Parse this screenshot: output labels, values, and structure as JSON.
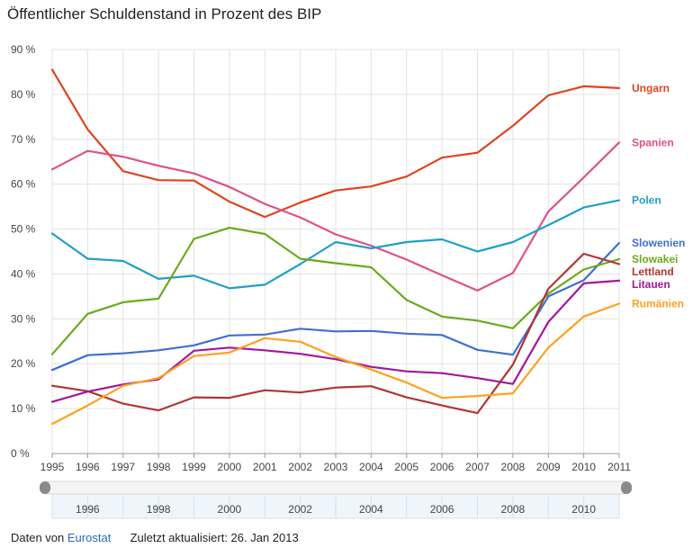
{
  "chart_data": {
    "type": "line",
    "title": "Öffentlicher Schuldenstand in Prozent des BIP",
    "ylim": [
      0,
      90
    ],
    "yticks": [
      0,
      10,
      20,
      30,
      40,
      50,
      60,
      70,
      80,
      90
    ],
    "ytick_labels": [
      "0 %",
      "10 %",
      "20 %",
      "30 %",
      "40 %",
      "50 %",
      "60 %",
      "70 %",
      "80 %",
      "90 %"
    ],
    "x": [
      "1995",
      "1996",
      "1997",
      "1998",
      "1999",
      "2000",
      "2001",
      "2002",
      "2003",
      "2004",
      "2005",
      "2006",
      "2007",
      "2008",
      "2009",
      "2010",
      "2011"
    ],
    "grid": true,
    "legend": "right",
    "series": [
      {
        "name": "Ungarn",
        "color": "#e0431f",
        "values": [
          85.5,
          72.2,
          62.9,
          60.9,
          60.8,
          56.1,
          52.7,
          55.9,
          58.6,
          59.5,
          61.7,
          65.9,
          67.0,
          73.0,
          79.8,
          81.8,
          81.4
        ]
      },
      {
        "name": "Spanien",
        "color": "#e0508a",
        "values": [
          63.3,
          67.4,
          66.1,
          64.1,
          62.4,
          59.4,
          55.6,
          52.6,
          48.8,
          46.3,
          43.2,
          39.7,
          36.3,
          40.2,
          53.9,
          61.5,
          69.3
        ]
      },
      {
        "name": "Polen",
        "color": "#1ea0c8",
        "values": [
          49.0,
          43.4,
          42.9,
          38.9,
          39.6,
          36.8,
          37.6,
          42.2,
          47.1,
          45.7,
          47.1,
          47.7,
          45.0,
          47.1,
          50.9,
          54.8,
          56.4
        ]
      },
      {
        "name": "Slowenien",
        "color": "#3f6fd0",
        "values": [
          18.6,
          21.9,
          22.3,
          23.0,
          24.1,
          26.3,
          26.5,
          27.8,
          27.2,
          27.3,
          26.7,
          26.4,
          23.1,
          22.0,
          35.0,
          38.6,
          46.9
        ]
      },
      {
        "name": "Slowakei",
        "color": "#6aaa1c",
        "values": [
          22.1,
          31.1,
          33.7,
          34.5,
          47.8,
          50.3,
          48.9,
          43.4,
          42.4,
          41.5,
          34.2,
          30.5,
          29.6,
          27.9,
          35.6,
          41.0,
          43.3
        ]
      },
      {
        "name": "Lettland",
        "color": "#b13535",
        "values": [
          15.1,
          13.9,
          11.1,
          9.6,
          12.5,
          12.4,
          14.1,
          13.6,
          14.7,
          15.0,
          12.5,
          10.7,
          9.0,
          19.8,
          36.7,
          44.5,
          42.2
        ]
      },
      {
        "name": "Litauen",
        "color": "#a2169e",
        "values": [
          11.5,
          13.8,
          15.4,
          16.5,
          22.9,
          23.6,
          23.0,
          22.2,
          21.0,
          19.3,
          18.3,
          17.9,
          16.8,
          15.5,
          29.3,
          37.9,
          38.5
        ]
      },
      {
        "name": "Rumänien",
        "color": "#ffa020",
        "values": [
          6.6,
          10.7,
          15.1,
          16.8,
          21.7,
          22.5,
          25.7,
          24.9,
          21.5,
          18.7,
          15.8,
          12.4,
          12.8,
          13.4,
          23.6,
          30.5,
          33.4
        ]
      }
    ]
  },
  "navigator": {
    "labels": [
      "1996",
      "1998",
      "2000",
      "2002",
      "2004",
      "2006",
      "2008",
      "2010"
    ]
  },
  "footer": {
    "source_prefix": "Daten von",
    "source_link": "Eurostat",
    "updated": "Zuletzt aktualisiert: 26. Jan 2013"
  }
}
